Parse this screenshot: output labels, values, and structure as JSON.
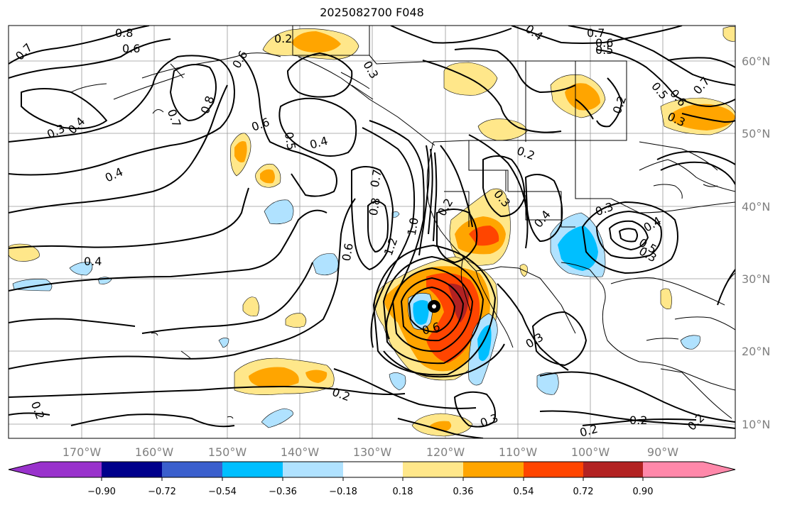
{
  "title": "2025082700 F048",
  "longitude_labels": [
    "170°W",
    "160°W",
    "150°W",
    "140°W",
    "130°W",
    "120°W",
    "110°W",
    "100°W",
    "90°W"
  ],
  "latitude_labels": [
    "60°N",
    "50°N",
    "40°N",
    "30°N",
    "20°N",
    "10°N"
  ],
  "colorbar": {
    "colors": [
      "#9932cc",
      "#00008b",
      "#3a5fcd",
      "#00bfff",
      "#b0e2ff",
      "#ffffff",
      "#ffe78a",
      "#ffa500",
      "#ff4500",
      "#b22222",
      "#ff88aa"
    ],
    "tick_labels": [
      "−0.90",
      "−0.72",
      "−0.54",
      "−0.36",
      "−0.18",
      "0.18",
      "0.36",
      "0.54",
      "0.72",
      "0.90"
    ]
  },
  "contour_labels": [
    "0.7",
    "0.8",
    "0.6",
    "0.2",
    "0.6",
    "0.3",
    "0.4",
    "0.7",
    "0.6",
    "0.5",
    "0.3",
    "0.4",
    "0.7",
    "0.8",
    "0.6",
    "0.5",
    "0.4",
    "0.4",
    "0.4",
    "0.7",
    "0.8",
    "1.0",
    "1.2",
    "0.6",
    "0.2",
    "0.3",
    "0.2",
    "0.4",
    "0.2",
    "0.5",
    "0.6",
    "0.7",
    "0.3",
    "0.3",
    "0.4",
    "0.5",
    "0.3",
    "0.6",
    "0.3",
    "0.2",
    "0.3",
    "0.2",
    "0.2",
    "0.2",
    "0.2"
  ],
  "fill_colors": {
    "warm_light": "#ffe78a",
    "warm_mid": "#ffa500",
    "warm_strong": "#ff4500",
    "warm_max": "#b22222",
    "cool_light": "#b0e2ff",
    "cool_mid": "#00bfff"
  }
}
